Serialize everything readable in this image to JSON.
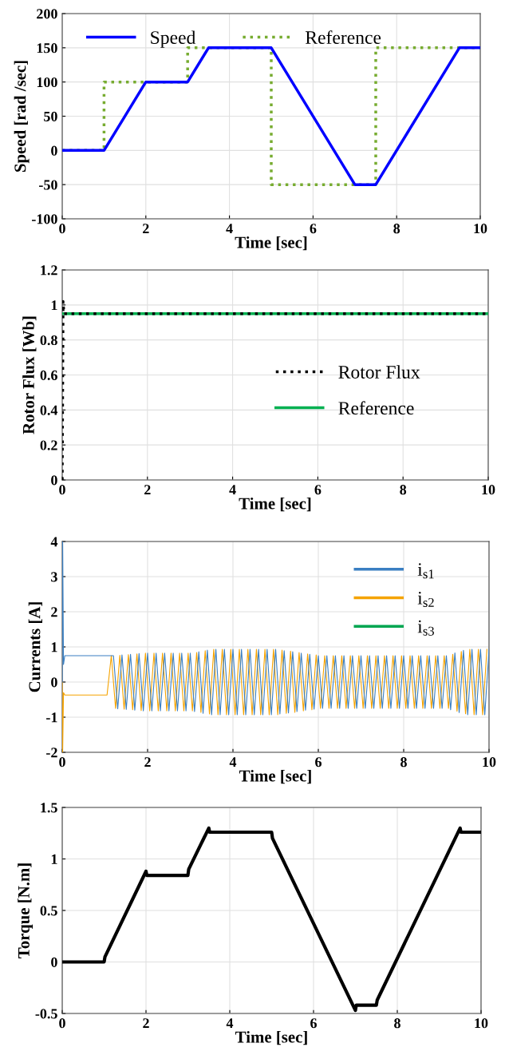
{
  "chart_data": [
    {
      "type": "line",
      "xlabel": "Time [sec]",
      "ylabel": "Speed [rad /sec]",
      "xlim": [
        0,
        10
      ],
      "xticks": [
        0,
        2,
        4,
        6,
        8,
        10
      ],
      "ylim": [
        -100,
        200
      ],
      "yticks": [
        -100,
        -50,
        0,
        50,
        100,
        150,
        200
      ],
      "grid": true,
      "legend": "top left",
      "series": [
        {
          "name": "Speed",
          "color": "#0000ff",
          "line_style": "solid",
          "x": [
            0,
            1,
            2,
            3,
            3.5,
            5,
            7,
            7.5,
            9.5,
            10
          ],
          "values": [
            0,
            0,
            100,
            100,
            150,
            150,
            -50,
            -50,
            150,
            150
          ]
        },
        {
          "name": "Reference",
          "type": "step",
          "color": "#77ac30",
          "line_style": "dotted",
          "x": [
            0,
            1,
            3,
            5,
            7.5,
            10
          ],
          "values": [
            0,
            100,
            150,
            -50,
            150,
            150
          ]
        }
      ]
    },
    {
      "type": "line",
      "xlabel": "Time [sec]",
      "ylabel": "Rotor Flux [Wb]",
      "xlim": [
        0,
        10
      ],
      "xticks": [
        0,
        2,
        4,
        6,
        8,
        10
      ],
      "ylim": [
        0,
        1.2
      ],
      "yticks": [
        0,
        0.2,
        0.4,
        0.6,
        0.8,
        1,
        1.2
      ],
      "grid": true,
      "legend": "right",
      "series": [
        {
          "name": "Rotor Flux",
          "color": "#000000",
          "line_style": "dotted",
          "x": [
            0,
            0.02,
            0.04,
            10
          ],
          "values": [
            0,
            1.02,
            0.95,
            0.95
          ]
        },
        {
          "name": "Reference",
          "color": "#00b050",
          "line_style": "solid",
          "x": [
            0,
            10
          ],
          "values": [
            0.95,
            0.95
          ]
        }
      ]
    },
    {
      "type": "line",
      "xlabel": "Time [sec]",
      "ylabel": "Currents [A]",
      "xlim": [
        0,
        10
      ],
      "xticks": [
        0,
        2,
        4,
        6,
        8,
        10
      ],
      "ylim": [
        -2,
        4
      ],
      "yticks": [
        -2,
        -1,
        0,
        1,
        2,
        3,
        4
      ],
      "grid": true,
      "legend": "top",
      "series": [
        {
          "name": "i$_{s1}$",
          "color": "#3a7fc2",
          "line_style": "solid",
          "x": [
            0,
            0.01,
            0.03,
            0.06,
            1.05,
            1.2,
            1.3,
            1.4,
            1.5,
            1.6,
            1.7,
            1.8,
            1.9,
            2.0,
            2.1,
            2.2,
            2.3,
            2.4,
            2.5,
            2.6,
            2.7,
            2.8,
            2.9,
            3.0,
            3.1,
            3.2,
            3.3,
            3.4,
            3.5,
            3.6,
            3.7,
            3.8,
            3.9,
            4.0,
            4.1,
            4.2,
            4.3,
            4.4,
            4.5,
            4.6,
            4.7,
            4.8,
            4.9,
            5.0,
            5.1,
            5.2,
            5.3,
            5.4,
            5.5,
            5.6,
            5.7,
            5.8,
            5.9,
            6.0,
            6.1,
            6.2,
            6.3,
            6.4,
            6.5,
            6.6,
            6.7,
            6.8,
            6.9,
            7.0,
            7.1,
            7.2,
            7.3,
            7.4,
            7.5,
            7.6,
            7.7,
            7.8,
            7.9,
            8.0,
            8.1,
            8.2,
            8.3,
            8.4,
            8.5,
            8.6,
            8.7,
            8.8,
            8.9,
            9.0,
            9.1,
            9.2,
            9.3,
            9.4,
            9.5,
            9.6,
            9.7,
            9.8,
            9.9,
            10.0
          ],
          "values": [
            0,
            4,
            0.5,
            0.75,
            0.75,
            0.75,
            -0.76,
            0.77,
            -0.78,
            0.79,
            -0.8,
            0.81,
            -0.82,
            0.82,
            -0.82,
            0.82,
            -0.82,
            0.82,
            -0.82,
            0.82,
            -0.82,
            0.82,
            -0.82,
            0.82,
            -0.84,
            0.86,
            -0.89,
            0.91,
            -0.93,
            0.93,
            -0.93,
            0.93,
            -0.93,
            0.93,
            -0.93,
            0.93,
            -0.93,
            0.93,
            -0.93,
            0.93,
            -0.93,
            0.93,
            -0.93,
            0.93,
            -0.91,
            0.89,
            -0.88,
            0.86,
            -0.84,
            0.82,
            -0.8,
            0.79,
            -0.77,
            0.75,
            -0.75,
            0.75,
            -0.75,
            0.75,
            -0.75,
            0.75,
            -0.75,
            0.75,
            -0.75,
            0.75,
            -0.75,
            0.75,
            -0.75,
            0.75,
            -0.75,
            0.75,
            -0.75,
            0.75,
            -0.75,
            0.75,
            -0.75,
            0.75,
            -0.75,
            0.75,
            -0.75,
            0.75,
            -0.75,
            0.75,
            -0.75,
            0.75,
            -0.79,
            0.83,
            -0.87,
            0.9,
            -0.93,
            0.93,
            -0.93,
            0.93,
            -0.93,
            0.93
          ]
        },
        {
          "name": "i$_{s2}$",
          "color": "#f5a300",
          "line_style": "solid",
          "x": [
            0,
            0.01,
            0.03,
            0.06,
            1.05,
            1.15,
            1.25,
            1.35,
            1.45,
            1.55,
            1.65,
            1.75,
            1.85,
            1.95,
            2.05,
            2.15,
            2.25,
            2.35,
            2.45,
            2.55,
            2.65,
            2.75,
            2.85,
            2.95,
            3.05,
            3.15,
            3.25,
            3.35,
            3.45,
            3.55,
            3.65,
            3.75,
            3.85,
            3.95,
            4.05,
            4.15,
            4.25,
            4.35,
            4.45,
            4.55,
            4.65,
            4.75,
            4.85,
            4.95,
            5.05,
            5.15,
            5.25,
            5.35,
            5.45,
            5.55,
            5.65,
            5.75,
            5.85,
            5.95,
            6.05,
            6.15,
            6.25,
            6.35,
            6.45,
            6.55,
            6.65,
            6.75,
            6.85,
            6.95,
            7.05,
            7.15,
            7.25,
            7.35,
            7.45,
            7.55,
            7.65,
            7.75,
            7.85,
            7.95,
            8.05,
            8.15,
            8.25,
            8.35,
            8.45,
            8.55,
            8.65,
            8.75,
            8.85,
            8.95,
            9.05,
            9.15,
            9.25,
            9.35,
            9.45,
            9.55,
            9.65,
            9.75,
            9.85,
            9.95
          ],
          "values": [
            0,
            -2,
            -0.3,
            -0.37,
            -0.37,
            0.75,
            -0.75,
            0.76,
            -0.77,
            0.78,
            -0.79,
            0.8,
            -0.81,
            0.82,
            -0.82,
            0.82,
            -0.82,
            0.82,
            -0.82,
            0.82,
            -0.82,
            0.82,
            -0.82,
            0.82,
            -0.82,
            0.84,
            -0.86,
            0.89,
            -0.91,
            0.93,
            -0.93,
            0.93,
            -0.93,
            0.93,
            -0.93,
            0.93,
            -0.93,
            0.93,
            -0.93,
            0.93,
            -0.93,
            0.93,
            -0.93,
            0.93,
            -0.93,
            0.91,
            -0.89,
            0.88,
            -0.86,
            0.84,
            -0.82,
            0.8,
            -0.79,
            0.77,
            -0.75,
            0.75,
            -0.75,
            0.75,
            -0.75,
            0.75,
            -0.75,
            0.75,
            -0.75,
            0.75,
            -0.75,
            0.75,
            -0.75,
            0.75,
            -0.75,
            0.75,
            -0.75,
            0.75,
            -0.75,
            0.75,
            -0.75,
            0.75,
            -0.75,
            0.75,
            -0.75,
            0.75,
            -0.75,
            0.75,
            -0.75,
            0.75,
            -0.75,
            0.79,
            -0.83,
            0.87,
            -0.9,
            0.93,
            -0.93,
            0.93,
            -0.93,
            0.93
          ]
        },
        {
          "name": "i$_{s3}$",
          "color": "#00a651",
          "line_style": "solid"
        }
      ]
    },
    {
      "type": "line",
      "xlabel": "Time [sec]",
      "ylabel": "Torque [N.m]",
      "xlim": [
        0,
        10
      ],
      "xticks": [
        0,
        2,
        4,
        6,
        8,
        10
      ],
      "ylim": [
        -0.5,
        1.5
      ],
      "yticks": [
        -0.5,
        0,
        0.5,
        1,
        1.5
      ],
      "grid": true,
      "series": [
        {
          "color": "#000000",
          "line_style": "solid",
          "x": [
            0,
            1,
            1.02,
            2,
            2.02,
            3,
            3.02,
            3.5,
            3.52,
            5,
            5.02,
            7,
            7.02,
            7.5,
            7.52,
            9.5,
            9.52,
            10
          ],
          "values": [
            0,
            0,
            0.05,
            0.88,
            0.84,
            0.84,
            0.9,
            1.3,
            1.26,
            1.26,
            1.2,
            -0.47,
            -0.42,
            -0.42,
            -0.37,
            1.3,
            1.26,
            1.26
          ]
        }
      ]
    }
  ]
}
